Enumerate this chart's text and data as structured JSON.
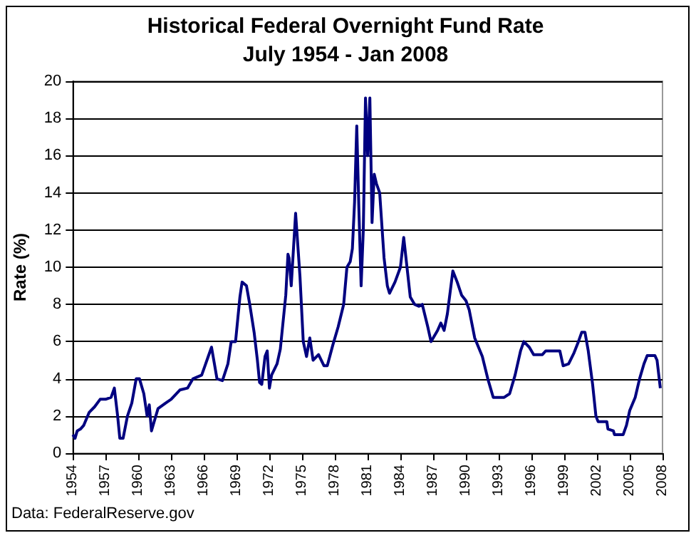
{
  "chart_data": {
    "type": "line",
    "title": "Historical Federal Overnight Fund Rate",
    "subtitle": "July 1954 - Jan 2008",
    "ylabel": "Rate (%)",
    "annotations": [
      "Data: FederalReserve.gov"
    ],
    "xlim": [
      1954,
      2008
    ],
    "xticks": [
      1954,
      1957,
      1960,
      1963,
      1966,
      1969,
      1972,
      1975,
      1978,
      1981,
      1984,
      1987,
      1990,
      1993,
      1996,
      1999,
      2002,
      2005,
      2008
    ],
    "ylim": [
      0,
      20
    ],
    "yticks": [
      0,
      2,
      4,
      6,
      8,
      10,
      12,
      14,
      16,
      18,
      20
    ],
    "grid": "y",
    "marker": "none",
    "line_style": "solid",
    "series": [
      {
        "color": "#000080",
        "x": [
          1954.0,
          1954.2,
          1954.4,
          1954.7,
          1955.0,
          1955.5,
          1956.0,
          1956.5,
          1957.0,
          1957.5,
          1957.8,
          1958.1,
          1958.3,
          1958.6,
          1959.0,
          1959.4,
          1959.8,
          1960.1,
          1960.5,
          1960.8,
          1961.0,
          1961.2,
          1961.5,
          1961.8,
          1962.5,
          1963.0,
          1963.8,
          1964.5,
          1965.0,
          1965.8,
          1966.4,
          1966.7,
          1967.2,
          1967.7,
          1968.2,
          1968.5,
          1968.9,
          1969.3,
          1969.5,
          1969.9,
          1970.2,
          1970.6,
          1970.9,
          1971.1,
          1971.3,
          1971.6,
          1971.8,
          1972.0,
          1972.2,
          1972.7,
          1973.0,
          1973.5,
          1973.7,
          1973.8,
          1974.0,
          1974.4,
          1974.8,
          1975.1,
          1975.4,
          1975.7,
          1976.0,
          1976.5,
          1977.0,
          1977.3,
          1977.8,
          1978.3,
          1978.8,
          1979.1,
          1979.4,
          1979.6,
          1979.8,
          1980.0,
          1980.2,
          1980.4,
          1980.6,
          1980.8,
          1981.0,
          1981.2,
          1981.4,
          1981.6,
          1981.8,
          1982.1,
          1982.5,
          1982.8,
          1983.0,
          1983.5,
          1984.0,
          1984.3,
          1984.6,
          1984.9,
          1985.3,
          1985.7,
          1986.0,
          1986.5,
          1986.8,
          1987.0,
          1987.4,
          1987.7,
          1988.0,
          1988.3,
          1988.8,
          1989.2,
          1989.6,
          1990.0,
          1990.3,
          1990.8,
          1991.5,
          1992.0,
          1992.5,
          1993.0,
          1993.5,
          1994.0,
          1994.5,
          1995.0,
          1995.3,
          1995.8,
          1996.2,
          1997.0,
          1997.3,
          1998.2,
          1998.6,
          1998.9,
          1999.4,
          1999.9,
          2000.3,
          2000.6,
          2000.9,
          2001.2,
          2001.6,
          2001.9,
          2002.1,
          2002.9,
          2003.0,
          2003.5,
          2003.6,
          2004.4,
          2004.7,
          2005.0,
          2005.5,
          2005.9,
          2006.3,
          2006.6,
          2007.3,
          2007.5,
          2007.8
        ],
        "values": [
          1.0,
          0.8,
          1.2,
          1.3,
          1.5,
          2.2,
          2.5,
          2.9,
          2.9,
          3.0,
          3.5,
          2.0,
          0.8,
          0.8,
          2.0,
          2.7,
          4.0,
          4.0,
          3.2,
          2.0,
          2.6,
          1.2,
          1.8,
          2.4,
          2.7,
          2.9,
          3.4,
          3.5,
          4.0,
          4.2,
          5.2,
          5.7,
          4.0,
          3.9,
          4.8,
          6.0,
          6.0,
          8.4,
          9.2,
          9.0,
          8.0,
          6.5,
          5.0,
          3.8,
          3.7,
          5.2,
          5.5,
          3.5,
          4.2,
          4.8,
          5.6,
          8.5,
          10.7,
          10.5,
          9.0,
          12.9,
          9.5,
          6.0,
          5.2,
          6.2,
          5.0,
          5.3,
          4.7,
          4.7,
          5.8,
          6.8,
          8.0,
          10.0,
          10.3,
          11.0,
          13.5,
          17.6,
          13.0,
          9.0,
          12.0,
          19.1,
          16.0,
          19.1,
          12.4,
          15.0,
          14.5,
          14.0,
          10.5,
          9.0,
          8.6,
          9.2,
          10.0,
          11.6,
          10.0,
          8.4,
          8.0,
          7.9,
          8.0,
          6.8,
          6.0,
          6.2,
          6.6,
          7.0,
          6.6,
          7.5,
          9.8,
          9.2,
          8.5,
          8.2,
          7.7,
          6.2,
          5.2,
          4.0,
          3.0,
          3.0,
          3.0,
          3.2,
          4.2,
          5.5,
          6.0,
          5.7,
          5.3,
          5.3,
          5.5,
          5.5,
          5.5,
          4.7,
          4.8,
          5.4,
          6.0,
          6.5,
          6.5,
          5.5,
          3.7,
          2.0,
          1.7,
          1.7,
          1.3,
          1.2,
          1.0,
          1.0,
          1.5,
          2.3,
          3.0,
          4.0,
          4.8,
          5.25,
          5.25,
          5.0,
          3.5
        ]
      }
    ]
  }
}
